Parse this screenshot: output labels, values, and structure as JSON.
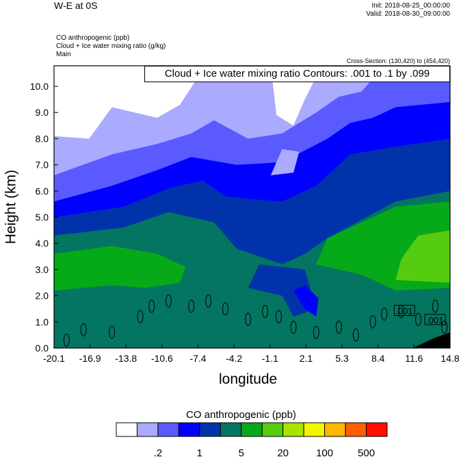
{
  "header": {
    "title": "W-E at 0S",
    "init": "Init: 2018-08-25_00:00:00",
    "valid": "Valid: 2018-08-30_09:00:00",
    "fields": [
      "CO anthropogenic   (ppb)",
      "Cloud + Ice water mixing ratio   (g/kg)",
      "Main"
    ],
    "cross_section": "Cross-Section: (130,420) to (454,420)"
  },
  "chart_data": {
    "type": "contour-filled",
    "contour_title": "Cloud + Ice water mixing ratio Contours: .001 to .1 by .099",
    "xlabel": "longitude",
    "ylabel": "Height (km)",
    "xlim": [
      -20.1,
      14.8
    ],
    "ylim": [
      0,
      10.8
    ],
    "xticks": [
      "-20.1",
      "-16.9",
      "-13.8",
      "-10.6",
      "-7.4",
      "-4.2",
      "-1.1",
      "2.1",
      "5.3",
      "8.4",
      "11.6",
      "14.8"
    ],
    "yticks": [
      "0.0",
      "1.0",
      "2.0",
      "3.0",
      "4.0",
      "5.0",
      "6.0",
      "7.0",
      "8.0",
      "9.0",
      "10.0"
    ],
    "contour_labels": [
      ".001",
      ".001"
    ],
    "colorbar": {
      "title": "CO anthropogenic  (ppb)",
      "colors": [
        "#ffffff",
        "#aaaaff",
        "#5a5aff",
        "#0000ff",
        "#0033aa",
        "#047560",
        "#06aa18",
        "#55cc10",
        "#a8e400",
        "#f4f400",
        "#ffb800",
        "#ff5f00",
        "#ff1000"
      ],
      "labels": [
        ".2",
        "1",
        "5",
        "20",
        "100",
        "500"
      ]
    },
    "regions": [
      {
        "color": "#06aa18",
        "pts": [
          [
            -20.1,
            2.2
          ],
          [
            -15,
            2.4
          ],
          [
            -12,
            2.3
          ],
          [
            -9,
            2.5
          ],
          [
            -8.5,
            3.1
          ],
          [
            -11,
            3.6
          ],
          [
            -15,
            3.9
          ],
          [
            -20.1,
            3.6
          ]
        ]
      },
      {
        "color": "#06aa18",
        "pts": [
          [
            3,
            3.2
          ],
          [
            7,
            2.8
          ],
          [
            10,
            2.2
          ],
          [
            14.8,
            2.3
          ],
          [
            14.8,
            5.6
          ],
          [
            10,
            5.4
          ],
          [
            7,
            4.8
          ],
          [
            4,
            4.2
          ]
        ]
      },
      {
        "color": "#55cc10",
        "pts": [
          [
            10,
            2.6
          ],
          [
            14.8,
            2.5
          ],
          [
            14.8,
            4.5
          ],
          [
            12,
            4.3
          ],
          [
            10.5,
            3.4
          ]
        ]
      },
      {
        "color": "#0033aa",
        "pts": [
          [
            -20.1,
            4.3
          ],
          [
            -14,
            4.6
          ],
          [
            -10,
            5.2
          ],
          [
            -6,
            4.8
          ],
          [
            -4,
            3.8
          ],
          [
            -2,
            3.5
          ],
          [
            0,
            3.2
          ],
          [
            2,
            3.6
          ],
          [
            4,
            4.2
          ],
          [
            7,
            4.9
          ],
          [
            10,
            5.6
          ],
          [
            14.8,
            6.0
          ],
          [
            14.8,
            10.8
          ],
          [
            -20.1,
            10.8
          ]
        ]
      },
      {
        "color": "#0033aa",
        "pts": [
          [
            -3,
            2.3
          ],
          [
            0,
            2.0
          ],
          [
            1,
            1.2
          ],
          [
            3,
            1.5
          ],
          [
            2,
            3.0
          ],
          [
            -2,
            3.2
          ]
        ]
      },
      {
        "color": "#0000ff",
        "pts": [
          [
            -20.1,
            5.0
          ],
          [
            -14,
            5.4
          ],
          [
            -10,
            6.1
          ],
          [
            -7,
            6.4
          ],
          [
            -5,
            5.8
          ],
          [
            -3,
            5.7
          ],
          [
            0,
            5.6
          ],
          [
            3,
            6.2
          ],
          [
            6,
            7.4
          ],
          [
            10,
            7.7
          ],
          [
            14.8,
            8.0
          ],
          [
            14.8,
            10.8
          ],
          [
            -20.1,
            10.8
          ]
        ]
      },
      {
        "color": "#0000ff",
        "pts": [
          [
            1,
            2.2
          ],
          [
            2,
            1.5
          ],
          [
            3,
            1.2
          ],
          [
            3.2,
            1.9
          ],
          [
            2,
            2.4
          ]
        ]
      },
      {
        "color": "#5a5aff",
        "pts": [
          [
            -20.1,
            5.6
          ],
          [
            -15,
            6.2
          ],
          [
            -11,
            6.8
          ],
          [
            -8,
            7.3
          ],
          [
            -4,
            7.0
          ],
          [
            0,
            7.1
          ],
          [
            4,
            8.0
          ],
          [
            6,
            8.6
          ],
          [
            8,
            8.8
          ],
          [
            10,
            9.2
          ],
          [
            14.8,
            9.4
          ],
          [
            14.8,
            10.8
          ],
          [
            -20.1,
            10.8
          ]
        ]
      },
      {
        "color": "#aaaaff",
        "pts": [
          [
            -20.1,
            6.6
          ],
          [
            -15,
            7.4
          ],
          [
            -11,
            7.8
          ],
          [
            -8,
            8.2
          ],
          [
            -6,
            8.7
          ],
          [
            -3,
            8.0
          ],
          [
            0,
            8.2
          ],
          [
            3,
            9.0
          ],
          [
            5,
            9.6
          ],
          [
            7,
            9.8
          ],
          [
            9,
            10.8
          ],
          [
            -20.1,
            10.8
          ]
        ]
      },
      {
        "color": "#aaaaff",
        "pts": [
          [
            -1,
            6.6
          ],
          [
            1,
            6.7
          ],
          [
            1.5,
            7.5
          ],
          [
            0,
            7.6
          ]
        ]
      },
      {
        "color": "#ffffff",
        "pts": [
          [
            -20.1,
            8.1
          ],
          [
            -17,
            8.0
          ],
          [
            -15,
            9.2
          ],
          [
            -11,
            8.8
          ],
          [
            -9,
            9.3
          ],
          [
            -7.5,
            10.3
          ],
          [
            -8,
            10.8
          ],
          [
            -20.1,
            10.8
          ]
        ]
      },
      {
        "color": "#ffffff",
        "pts": [
          [
            -0.5,
            8.9
          ],
          [
            1,
            8.5
          ],
          [
            2,
            9.5
          ],
          [
            3.5,
            10.8
          ],
          [
            -1,
            10.8
          ]
        ]
      },
      {
        "color": "#000000",
        "pts": [
          [
            11.5,
            0
          ],
          [
            12.5,
            0.2
          ],
          [
            13.5,
            0.4
          ],
          [
            14.8,
            0.6
          ],
          [
            14.8,
            0
          ]
        ]
      }
    ]
  }
}
